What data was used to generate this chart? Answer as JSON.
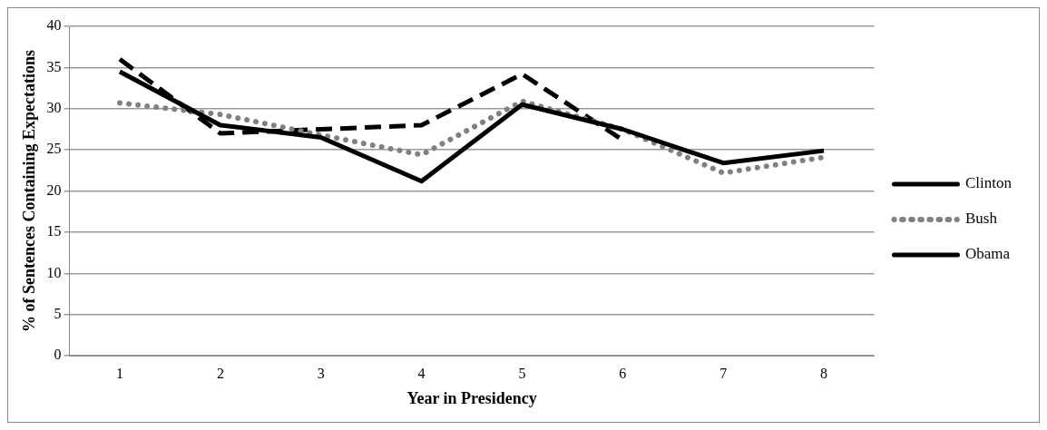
{
  "chart_data": {
    "type": "line",
    "xlabel": "Year in Presidency",
    "ylabel": "% of Sentences Containing Expectations",
    "categories": [
      "1",
      "2",
      "3",
      "4",
      "5",
      "6",
      "7",
      "8"
    ],
    "ylim": [
      0,
      40
    ],
    "yticks": [
      0,
      5,
      10,
      15,
      20,
      25,
      30,
      35,
      40
    ],
    "grid": "y",
    "legend": "right",
    "marker": "none",
    "series": [
      {
        "name": "Clinton",
        "color": "#000000",
        "line_style": "solid",
        "values": [
          34.5,
          28,
          26.5,
          21.2,
          30.5,
          27.5,
          23.4,
          24.9
        ]
      },
      {
        "name": "Bush",
        "color": "#808080",
        "line_style": "dotted",
        "values": [
          30.7,
          29.3,
          26.8,
          24.4,
          30.9,
          27.5,
          22.2,
          24.1
        ]
      },
      {
        "name": "Obama",
        "color": "#000000",
        "line_style": "dashed",
        "values": [
          36,
          27,
          27.5,
          28,
          34.2,
          26.2,
          null,
          null
        ]
      }
    ]
  }
}
